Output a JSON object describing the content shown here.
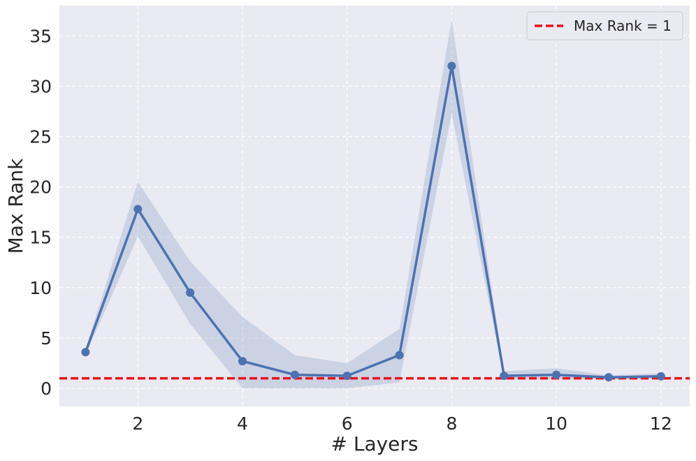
{
  "chart_data": {
    "type": "line",
    "xlabel": "# Layers",
    "ylabel": "Max Rank",
    "xlim": [
      0.5,
      12.55
    ],
    "ylim": [
      -1.8,
      38.0
    ],
    "x_ticks": [
      2,
      4,
      6,
      8,
      10,
      12
    ],
    "y_ticks": [
      0,
      5,
      10,
      15,
      20,
      25,
      30,
      35
    ],
    "grid": true,
    "legend_position": "top-right",
    "series": [
      {
        "color": "#4c72b0",
        "x": [
          1,
          2,
          3,
          4,
          5,
          6,
          7,
          8,
          9,
          10,
          11,
          12
        ],
        "values": [
          3.6,
          17.8,
          9.5,
          2.7,
          1.35,
          1.25,
          3.3,
          32.0,
          1.25,
          1.35,
          1.1,
          1.2
        ],
        "band_lower": [
          3.3,
          15.1,
          6.4,
          0.0,
          0.0,
          0.0,
          0.6,
          27.3,
          0.9,
          0.9,
          0.9,
          0.9
        ],
        "band_upper": [
          3.9,
          20.5,
          12.6,
          7.1,
          3.3,
          2.5,
          5.9,
          36.6,
          1.7,
          2.0,
          1.3,
          1.5
        ]
      }
    ],
    "reference_line": {
      "name": "Max Rank = 1",
      "y": 1,
      "color": "#e8111a",
      "style": "dashed"
    }
  }
}
